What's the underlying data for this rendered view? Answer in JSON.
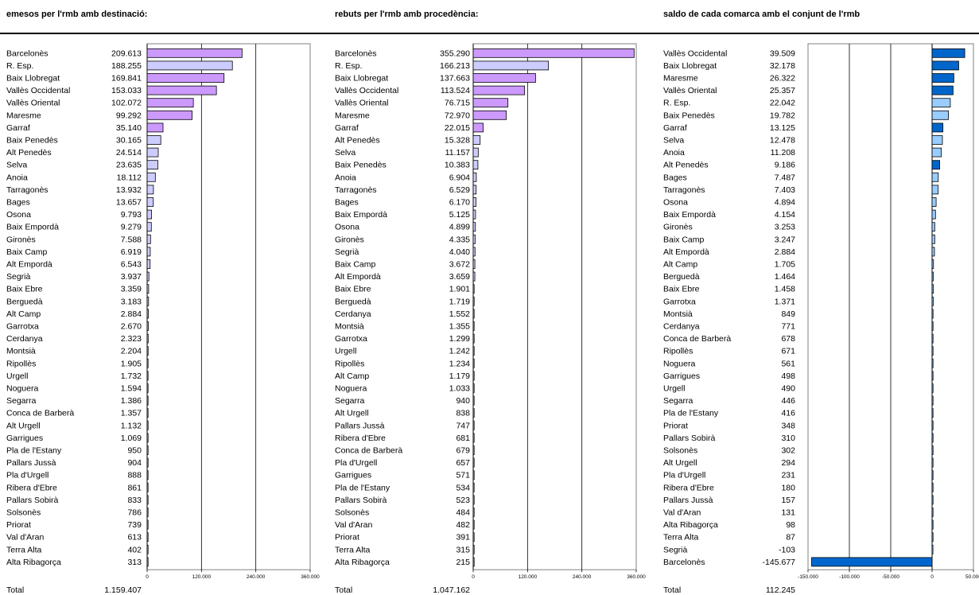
{
  "colors": {
    "purple": "#cc99ff",
    "lavender": "#ccccff",
    "blue": "#0066cc",
    "lightblue": "#99ccff"
  },
  "chart_data": [
    {
      "type": "bar",
      "title": "emesos per l'rmb amb destinació:",
      "xlim": [
        0,
        360000
      ],
      "xticks": [
        "0",
        "120.000",
        "240.000",
        "360.000"
      ],
      "xtick_values": [
        0,
        120000,
        240000,
        360000
      ],
      "total_label": "Total",
      "total_value": "1.159.407",
      "rows": [
        {
          "name": "Barcelonès",
          "value": 209613,
          "display": "209.613",
          "color": "purple"
        },
        {
          "name": "R. Esp.",
          "value": 188255,
          "display": "188.255",
          "color": "lavender"
        },
        {
          "name": "Baix Llobregat",
          "value": 169841,
          "display": "169.841",
          "color": "purple"
        },
        {
          "name": "Vallès Occidental",
          "value": 153033,
          "display": "153.033",
          "color": "purple"
        },
        {
          "name": "Vallès Oriental",
          "value": 102072,
          "display": "102.072",
          "color": "purple"
        },
        {
          "name": "Maresme",
          "value": 99292,
          "display": "99.292",
          "color": "purple"
        },
        {
          "name": "Garraf",
          "value": 35140,
          "display": "35.140",
          "color": "purple"
        },
        {
          "name": "Baix Penedès",
          "value": 30165,
          "display": "30.165",
          "color": "lavender"
        },
        {
          "name": "Alt Penedès",
          "value": 24514,
          "display": "24.514",
          "color": "lavender"
        },
        {
          "name": "Selva",
          "value": 23635,
          "display": "23.635",
          "color": "lavender"
        },
        {
          "name": "Anoia",
          "value": 18112,
          "display": "18.112",
          "color": "lavender"
        },
        {
          "name": "Tarragonès",
          "value": 13932,
          "display": "13.932",
          "color": "lavender"
        },
        {
          "name": "Bages",
          "value": 13657,
          "display": "13.657",
          "color": "lavender"
        },
        {
          "name": "Osona",
          "value": 9793,
          "display": "9.793",
          "color": "lavender"
        },
        {
          "name": "Baix Empordà",
          "value": 9279,
          "display": "9.279",
          "color": "lavender"
        },
        {
          "name": "Gironès",
          "value": 7588,
          "display": "7.588",
          "color": "lavender"
        },
        {
          "name": "Baix Camp",
          "value": 6919,
          "display": "6.919",
          "color": "lavender"
        },
        {
          "name": "Alt Empordà",
          "value": 6543,
          "display": "6.543",
          "color": "lavender"
        },
        {
          "name": "Segrià",
          "value": 3937,
          "display": "3.937",
          "color": "lavender"
        },
        {
          "name": "Baix Ebre",
          "value": 3359,
          "display": "3.359",
          "color": "lavender"
        },
        {
          "name": "Berguedà",
          "value": 3183,
          "display": "3.183",
          "color": "lavender"
        },
        {
          "name": "Alt Camp",
          "value": 2884,
          "display": "2.884",
          "color": "lavender"
        },
        {
          "name": "Garrotxa",
          "value": 2670,
          "display": "2.670",
          "color": "lavender"
        },
        {
          "name": "Cerdanya",
          "value": 2323,
          "display": "2.323",
          "color": "lavender"
        },
        {
          "name": "Montsià",
          "value": 2204,
          "display": "2.204",
          "color": "lavender"
        },
        {
          "name": "Ripollès",
          "value": 1905,
          "display": "1.905",
          "color": "lavender"
        },
        {
          "name": "Urgell",
          "value": 1732,
          "display": "1.732",
          "color": "lavender"
        },
        {
          "name": "Noguera",
          "value": 1594,
          "display": "1.594",
          "color": "lavender"
        },
        {
          "name": "Segarra",
          "value": 1386,
          "display": "1.386",
          "color": "lavender"
        },
        {
          "name": "Conca de Barberà",
          "value": 1357,
          "display": "1.357",
          "color": "lavender"
        },
        {
          "name": "Alt Urgell",
          "value": 1132,
          "display": "1.132",
          "color": "lavender"
        },
        {
          "name": "Garrigues",
          "value": 1069,
          "display": "1.069",
          "color": "lavender"
        },
        {
          "name": "Pla de l'Estany",
          "value": 950,
          "display": "950",
          "color": "lavender"
        },
        {
          "name": "Pallars Jussà",
          "value": 904,
          "display": "904",
          "color": "lavender"
        },
        {
          "name": "Pla d'Urgell",
          "value": 888,
          "display": "888",
          "color": "lavender"
        },
        {
          "name": "Ribera d'Ebre",
          "value": 861,
          "display": "861",
          "color": "lavender"
        },
        {
          "name": "Pallars Sobirà",
          "value": 833,
          "display": "833",
          "color": "lavender"
        },
        {
          "name": "Solsonès",
          "value": 786,
          "display": "786",
          "color": "lavender"
        },
        {
          "name": "Priorat",
          "value": 739,
          "display": "739",
          "color": "lavender"
        },
        {
          "name": "Val d'Aran",
          "value": 613,
          "display": "613",
          "color": "lavender"
        },
        {
          "name": "Terra Alta",
          "value": 402,
          "display": "402",
          "color": "lavender"
        },
        {
          "name": "Alta Ribagorça",
          "value": 313,
          "display": "313",
          "color": "lavender"
        }
      ]
    },
    {
      "type": "bar",
      "title": "rebuts per l'rmb amb procedència:",
      "xlim": [
        0,
        360000
      ],
      "xticks": [
        "0",
        "120.000",
        "240.000",
        "360.000"
      ],
      "xtick_values": [
        0,
        120000,
        240000,
        360000
      ],
      "total_label": "Total",
      "total_value": "1.047.162",
      "rows": [
        {
          "name": "Barcelonès",
          "value": 355290,
          "display": "355.290",
          "color": "purple"
        },
        {
          "name": "R. Esp.",
          "value": 166213,
          "display": "166.213",
          "color": "lavender"
        },
        {
          "name": "Baix Llobregat",
          "value": 137663,
          "display": "137.663",
          "color": "purple"
        },
        {
          "name": "Vallès Occidental",
          "value": 113524,
          "display": "113.524",
          "color": "purple"
        },
        {
          "name": "Vallès Oriental",
          "value": 76715,
          "display": "76.715",
          "color": "purple"
        },
        {
          "name": "Maresme",
          "value": 72970,
          "display": "72.970",
          "color": "purple"
        },
        {
          "name": "Garraf",
          "value": 22015,
          "display": "22.015",
          "color": "purple"
        },
        {
          "name": "Alt Penedès",
          "value": 15328,
          "display": "15.328",
          "color": "lavender"
        },
        {
          "name": "Selva",
          "value": 11157,
          "display": "11.157",
          "color": "lavender"
        },
        {
          "name": "Baix Penedès",
          "value": 10383,
          "display": "10.383",
          "color": "lavender"
        },
        {
          "name": "Anoia",
          "value": 6904,
          "display": "6.904",
          "color": "lavender"
        },
        {
          "name": "Tarragonès",
          "value": 6529,
          "display": "6.529",
          "color": "lavender"
        },
        {
          "name": "Bages",
          "value": 6170,
          "display": "6.170",
          "color": "lavender"
        },
        {
          "name": "Baix Empordà",
          "value": 5125,
          "display": "5.125",
          "color": "lavender"
        },
        {
          "name": "Osona",
          "value": 4899,
          "display": "4.899",
          "color": "lavender"
        },
        {
          "name": "Gironès",
          "value": 4335,
          "display": "4.335",
          "color": "lavender"
        },
        {
          "name": "Segrià",
          "value": 4040,
          "display": "4.040",
          "color": "lavender"
        },
        {
          "name": "Baix Camp",
          "value": 3672,
          "display": "3.672",
          "color": "lavender"
        },
        {
          "name": "Alt Empordà",
          "value": 3659,
          "display": "3.659",
          "color": "lavender"
        },
        {
          "name": "Baix Ebre",
          "value": 1901,
          "display": "1.901",
          "color": "lavender"
        },
        {
          "name": "Berguedà",
          "value": 1719,
          "display": "1.719",
          "color": "lavender"
        },
        {
          "name": "Cerdanya",
          "value": 1552,
          "display": "1.552",
          "color": "lavender"
        },
        {
          "name": "Montsià",
          "value": 1355,
          "display": "1.355",
          "color": "lavender"
        },
        {
          "name": "Garrotxa",
          "value": 1299,
          "display": "1.299",
          "color": "lavender"
        },
        {
          "name": "Urgell",
          "value": 1242,
          "display": "1.242",
          "color": "lavender"
        },
        {
          "name": "Ripollès",
          "value": 1234,
          "display": "1.234",
          "color": "lavender"
        },
        {
          "name": "Alt Camp",
          "value": 1179,
          "display": "1.179",
          "color": "lavender"
        },
        {
          "name": "Noguera",
          "value": 1033,
          "display": "1.033",
          "color": "lavender"
        },
        {
          "name": "Segarra",
          "value": 940,
          "display": "940",
          "color": "lavender"
        },
        {
          "name": "Alt Urgell",
          "value": 838,
          "display": "838",
          "color": "lavender"
        },
        {
          "name": "Pallars Jussà",
          "value": 747,
          "display": "747",
          "color": "lavender"
        },
        {
          "name": "Ribera d'Ebre",
          "value": 681,
          "display": "681",
          "color": "lavender"
        },
        {
          "name": "Conca de Barberà",
          "value": 679,
          "display": "679",
          "color": "lavender"
        },
        {
          "name": "Pla d'Urgell",
          "value": 657,
          "display": "657",
          "color": "lavender"
        },
        {
          "name": "Garrigues",
          "value": 571,
          "display": "571",
          "color": "lavender"
        },
        {
          "name": "Pla de l'Estany",
          "value": 534,
          "display": "534",
          "color": "lavender"
        },
        {
          "name": "Pallars Sobirà",
          "value": 523,
          "display": "523",
          "color": "lavender"
        },
        {
          "name": "Solsonès",
          "value": 484,
          "display": "484",
          "color": "lavender"
        },
        {
          "name": "Val d'Aran",
          "value": 482,
          "display": "482",
          "color": "lavender"
        },
        {
          "name": "Priorat",
          "value": 391,
          "display": "391",
          "color": "lavender"
        },
        {
          "name": "Terra Alta",
          "value": 315,
          "display": "315",
          "color": "lavender"
        },
        {
          "name": "Alta Ribagorça",
          "value": 215,
          "display": "215",
          "color": "lavender"
        }
      ]
    },
    {
      "type": "bar",
      "title": "saldo de cada comarca amb el conjunt de l'rmb",
      "xlim": [
        -150000,
        50000
      ],
      "xticks": [
        "-150.000",
        "-100.000",
        "-50.000",
        "0",
        "50.000"
      ],
      "xtick_values": [
        -150000,
        -100000,
        -50000,
        0,
        50000
      ],
      "total_label": "Total",
      "total_value": "112.245",
      "rows": [
        {
          "name": "Vallès Occidental",
          "value": 39509,
          "display": "39.509",
          "color": "blue"
        },
        {
          "name": "Baix Llobregat",
          "value": 32178,
          "display": "32.178",
          "color": "blue"
        },
        {
          "name": "Maresme",
          "value": 26322,
          "display": "26.322",
          "color": "blue"
        },
        {
          "name": "Vallès Oriental",
          "value": 25357,
          "display": "25.357",
          "color": "blue"
        },
        {
          "name": "R. Esp.",
          "value": 22042,
          "display": "22.042",
          "color": "lightblue"
        },
        {
          "name": "Baix Penedès",
          "value": 19782,
          "display": "19.782",
          "color": "lightblue"
        },
        {
          "name": "Garraf",
          "value": 13125,
          "display": "13.125",
          "color": "blue"
        },
        {
          "name": "Selva",
          "value": 12478,
          "display": "12.478",
          "color": "lightblue"
        },
        {
          "name": "Anoia",
          "value": 11208,
          "display": "11.208",
          "color": "lightblue"
        },
        {
          "name": "Alt Penedès",
          "value": 9186,
          "display": "9.186",
          "color": "blue"
        },
        {
          "name": "Bages",
          "value": 7487,
          "display": "7.487",
          "color": "lightblue"
        },
        {
          "name": "Tarragonès",
          "value": 7403,
          "display": "7.403",
          "color": "lightblue"
        },
        {
          "name": "Osona",
          "value": 4894,
          "display": "4.894",
          "color": "lightblue"
        },
        {
          "name": "Baix Empordà",
          "value": 4154,
          "display": "4.154",
          "color": "lightblue"
        },
        {
          "name": "Gironès",
          "value": 3253,
          "display": "3.253",
          "color": "lightblue"
        },
        {
          "name": "Baix Camp",
          "value": 3247,
          "display": "3.247",
          "color": "lightblue"
        },
        {
          "name": "Alt Empordà",
          "value": 2884,
          "display": "2.884",
          "color": "lightblue"
        },
        {
          "name": "Alt Camp",
          "value": 1705,
          "display": "1.705",
          "color": "lightblue"
        },
        {
          "name": "Berguedà",
          "value": 1464,
          "display": "1.464",
          "color": "lightblue"
        },
        {
          "name": "Baix Ebre",
          "value": 1458,
          "display": "1.458",
          "color": "lightblue"
        },
        {
          "name": "Garrotxa",
          "value": 1371,
          "display": "1.371",
          "color": "lightblue"
        },
        {
          "name": "Montsià",
          "value": 849,
          "display": "849",
          "color": "lightblue"
        },
        {
          "name": "Cerdanya",
          "value": 771,
          "display": "771",
          "color": "lightblue"
        },
        {
          "name": "Conca de Barberà",
          "value": 678,
          "display": "678",
          "color": "lightblue"
        },
        {
          "name": "Ripollès",
          "value": 671,
          "display": "671",
          "color": "lightblue"
        },
        {
          "name": "Noguera",
          "value": 561,
          "display": "561",
          "color": "lightblue"
        },
        {
          "name": "Garrigues",
          "value": 498,
          "display": "498",
          "color": "lightblue"
        },
        {
          "name": "Urgell",
          "value": 490,
          "display": "490",
          "color": "lightblue"
        },
        {
          "name": "Segarra",
          "value": 446,
          "display": "446",
          "color": "lightblue"
        },
        {
          "name": "Pla de l'Estany",
          "value": 416,
          "display": "416",
          "color": "lightblue"
        },
        {
          "name": "Priorat",
          "value": 348,
          "display": "348",
          "color": "lightblue"
        },
        {
          "name": "Pallars Sobirà",
          "value": 310,
          "display": "310",
          "color": "lightblue"
        },
        {
          "name": "Solsonès",
          "value": 302,
          "display": "302",
          "color": "lightblue"
        },
        {
          "name": "Alt Urgell",
          "value": 294,
          "display": "294",
          "color": "lightblue"
        },
        {
          "name": "Pla d'Urgell",
          "value": 231,
          "display": "231",
          "color": "lightblue"
        },
        {
          "name": "Ribera d'Ebre",
          "value": 180,
          "display": "180",
          "color": "lightblue"
        },
        {
          "name": "Pallars Jussà",
          "value": 157,
          "display": "157",
          "color": "lightblue"
        },
        {
          "name": "Val d'Aran",
          "value": 131,
          "display": "131",
          "color": "lightblue"
        },
        {
          "name": "Alta Ribagorça",
          "value": 98,
          "display": "98",
          "color": "lightblue"
        },
        {
          "name": "Terra Alta",
          "value": 87,
          "display": "87",
          "color": "lightblue"
        },
        {
          "name": "Segrià",
          "value": -103,
          "display": "-103",
          "color": "lightblue"
        },
        {
          "name": "Barcelonès",
          "value": -145677,
          "display": "-145.677",
          "color": "blue"
        }
      ]
    }
  ]
}
